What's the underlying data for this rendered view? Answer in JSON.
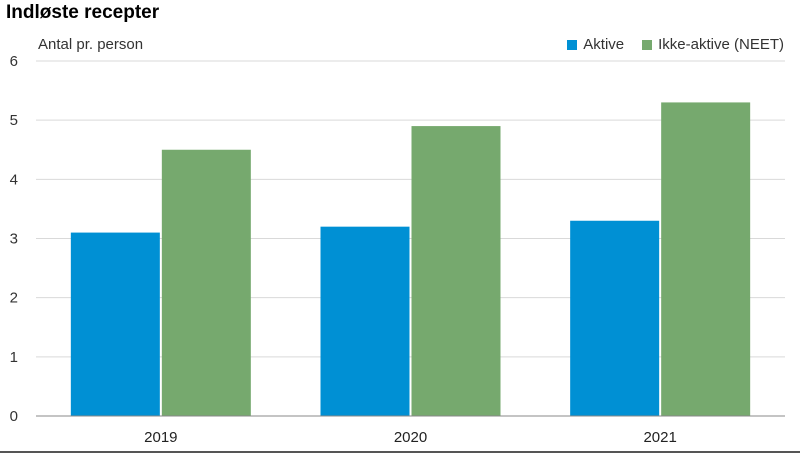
{
  "title": "Indløste recepter",
  "colors": {
    "aktive": "#0090d4",
    "ikke_aktive": "#76a96e",
    "grid": "#d9d9d9",
    "axis": "#888888"
  },
  "chart_data": {
    "type": "bar",
    "ylabel": "Antal pr. person",
    "categories": [
      "2019",
      "2020",
      "2021"
    ],
    "series": [
      {
        "name": "Aktive",
        "values": [
          3.1,
          3.2,
          3.3
        ]
      },
      {
        "name": "Ikke-aktive (NEET)",
        "values": [
          4.5,
          4.9,
          5.3
        ]
      }
    ],
    "ylim": [
      0,
      6
    ],
    "yticks": [
      "0",
      "1",
      "2",
      "3",
      "4",
      "5",
      "6"
    ],
    "grid": true,
    "legend": "top-right"
  }
}
